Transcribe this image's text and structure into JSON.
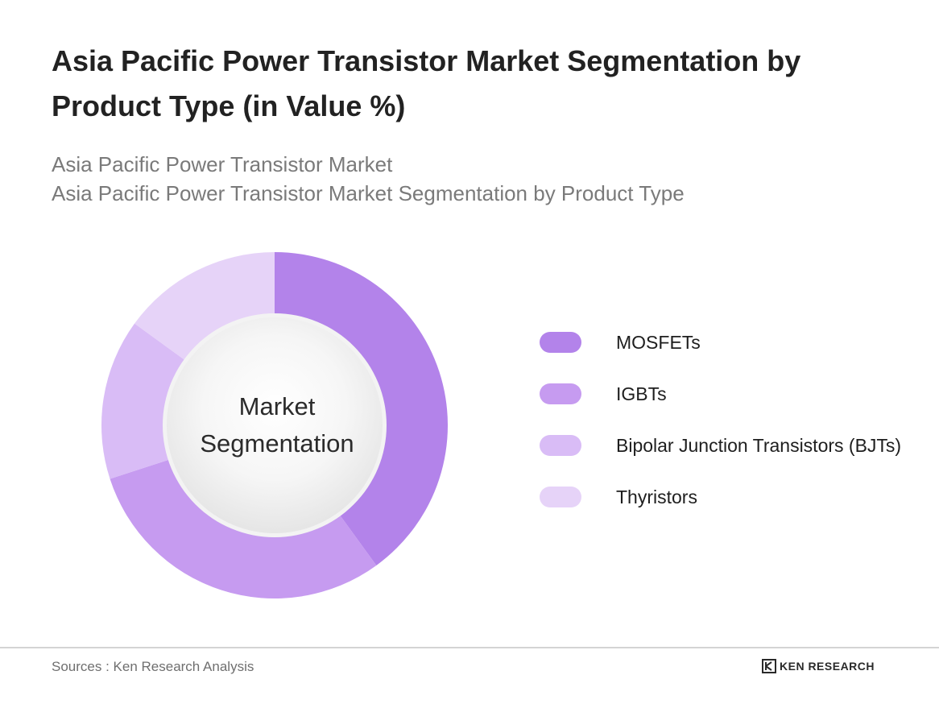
{
  "header": {
    "title": "Asia Pacific Power Transistor Market Segmentation by Product Type (in Value %)",
    "subtitle_line1": "Asia Pacific Power Transistor Market",
    "subtitle_line2": "Asia Pacific Power Transistor Market Segmentation by Product Type"
  },
  "chart_data": {
    "type": "pie",
    "variant": "donut",
    "center_label_line1": "Market",
    "center_label_line2": "Segmentation",
    "categories": [
      "MOSFETs",
      "IGBTs",
      "Bipolar Junction Transistors (BJTs)",
      "Thyristors"
    ],
    "values": [
      40,
      30,
      15,
      15
    ],
    "colors": [
      "#b383ea",
      "#c69bf0",
      "#d9bcf6",
      "#e6d3f8"
    ],
    "legend_position": "right"
  },
  "footer": {
    "source": "Sources : Ken Research Analysis",
    "logo_text": "KEN RESEARCH"
  }
}
